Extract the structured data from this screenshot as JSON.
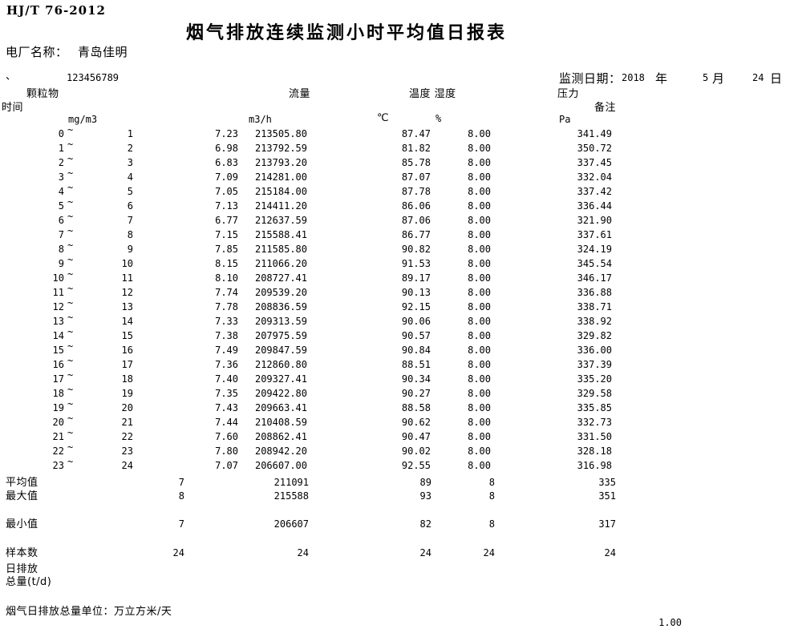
{
  "header": {
    "standard": "HJ/T 76-2012",
    "title": "烟气排放连续监测小时平均值日报表",
    "plant_label": "电厂名称：",
    "plant_name": "青岛佳明",
    "mark": "、",
    "serial": "123456789",
    "date_label": "监测日期：",
    "date_year": "2018",
    "year_unit": "年",
    "date_month": "5",
    "month_unit": "月",
    "date_day": "24",
    "day_unit": "日"
  },
  "columns": {
    "time_label": "时间",
    "pm_label": "颗粒物",
    "flow_label": "流量",
    "temp_humidity_label": "温度 湿度",
    "pressure_label": "压力",
    "remark_label": "备注",
    "pm_unit": "mg/m3",
    "flow_unit": "m3/h",
    "temp_unit": "℃",
    "humidity_unit": "%",
    "pressure_unit": "Pa"
  },
  "table": {
    "tilde": "~",
    "rows": [
      {
        "start": "0",
        "end": "1",
        "pm": "7.23",
        "flow": "213505.80",
        "temp": "87.47",
        "humidity": "8.00",
        "pressure": "341.49"
      },
      {
        "start": "1",
        "end": "2",
        "pm": "6.98",
        "flow": "213792.59",
        "temp": "81.82",
        "humidity": "8.00",
        "pressure": "350.72"
      },
      {
        "start": "2",
        "end": "3",
        "pm": "6.83",
        "flow": "213793.20",
        "temp": "85.78",
        "humidity": "8.00",
        "pressure": "337.45"
      },
      {
        "start": "3",
        "end": "4",
        "pm": "7.09",
        "flow": "214281.00",
        "temp": "87.07",
        "humidity": "8.00",
        "pressure": "332.04"
      },
      {
        "start": "4",
        "end": "5",
        "pm": "7.05",
        "flow": "215184.00",
        "temp": "87.78",
        "humidity": "8.00",
        "pressure": "337.42"
      },
      {
        "start": "5",
        "end": "6",
        "pm": "7.13",
        "flow": "214411.20",
        "temp": "86.06",
        "humidity": "8.00",
        "pressure": "336.44"
      },
      {
        "start": "6",
        "end": "7",
        "pm": "6.77",
        "flow": "212637.59",
        "temp": "87.06",
        "humidity": "8.00",
        "pressure": "321.90"
      },
      {
        "start": "7",
        "end": "8",
        "pm": "7.15",
        "flow": "215588.41",
        "temp": "86.77",
        "humidity": "8.00",
        "pressure": "337.61"
      },
      {
        "start": "8",
        "end": "9",
        "pm": "7.85",
        "flow": "211585.80",
        "temp": "90.82",
        "humidity": "8.00",
        "pressure": "324.19"
      },
      {
        "start": "9",
        "end": "10",
        "pm": "8.15",
        "flow": "211066.20",
        "temp": "91.53",
        "humidity": "8.00",
        "pressure": "345.54"
      },
      {
        "start": "10",
        "end": "11",
        "pm": "8.10",
        "flow": "208727.41",
        "temp": "89.17",
        "humidity": "8.00",
        "pressure": "346.17"
      },
      {
        "start": "11",
        "end": "12",
        "pm": "7.74",
        "flow": "209539.20",
        "temp": "90.13",
        "humidity": "8.00",
        "pressure": "336.88"
      },
      {
        "start": "12",
        "end": "13",
        "pm": "7.78",
        "flow": "208836.59",
        "temp": "92.15",
        "humidity": "8.00",
        "pressure": "338.71"
      },
      {
        "start": "13",
        "end": "14",
        "pm": "7.33",
        "flow": "209313.59",
        "temp": "90.06",
        "humidity": "8.00",
        "pressure": "338.92"
      },
      {
        "start": "14",
        "end": "15",
        "pm": "7.38",
        "flow": "207975.59",
        "temp": "90.57",
        "humidity": "8.00",
        "pressure": "329.82"
      },
      {
        "start": "15",
        "end": "16",
        "pm": "7.49",
        "flow": "209847.59",
        "temp": "90.84",
        "humidity": "8.00",
        "pressure": "336.00"
      },
      {
        "start": "16",
        "end": "17",
        "pm": "7.36",
        "flow": "212860.80",
        "temp": "88.51",
        "humidity": "8.00",
        "pressure": "337.39"
      },
      {
        "start": "17",
        "end": "18",
        "pm": "7.40",
        "flow": "209327.41",
        "temp": "90.34",
        "humidity": "8.00",
        "pressure": "335.20"
      },
      {
        "start": "18",
        "end": "19",
        "pm": "7.35",
        "flow": "209422.80",
        "temp": "90.27",
        "humidity": "8.00",
        "pressure": "329.58"
      },
      {
        "start": "19",
        "end": "20",
        "pm": "7.43",
        "flow": "209663.41",
        "temp": "88.58",
        "humidity": "8.00",
        "pressure": "335.85"
      },
      {
        "start": "20",
        "end": "21",
        "pm": "7.44",
        "flow": "210408.59",
        "temp": "90.62",
        "humidity": "8.00",
        "pressure": "332.73"
      },
      {
        "start": "21",
        "end": "22",
        "pm": "7.60",
        "flow": "208862.41",
        "temp": "90.47",
        "humidity": "8.00",
        "pressure": "331.50"
      },
      {
        "start": "22",
        "end": "23",
        "pm": "7.80",
        "flow": "208942.20",
        "temp": "90.02",
        "humidity": "8.00",
        "pressure": "328.18"
      },
      {
        "start": "23",
        "end": "24",
        "pm": "7.07",
        "flow": "206607.00",
        "temp": "92.55",
        "humidity": "8.00",
        "pressure": "316.98"
      }
    ],
    "summary": [
      {
        "label": "平均值",
        "pm": "7",
        "flow": "211091",
        "temp": "89",
        "humidity": "8",
        "pressure": "335"
      },
      {
        "label": "最大值",
        "pm": "8",
        "flow": "215588",
        "temp": "93",
        "humidity": "8",
        "pressure": "351"
      },
      {
        "label": "最小值",
        "pm": "7",
        "flow": "206607",
        "temp": "82",
        "humidity": "8",
        "pressure": "317"
      },
      {
        "label": "样本数",
        "pm": "24",
        "flow": "24",
        "temp": "24",
        "humidity": "24",
        "pressure": "24"
      }
    ]
  },
  "footer": {
    "daily_emission_label_1": "日排放",
    "daily_emission_label_2": "总量(t/d)",
    "unit_note": "烟气日排放总量单位：万立方米/天",
    "page_number": "1.00"
  }
}
